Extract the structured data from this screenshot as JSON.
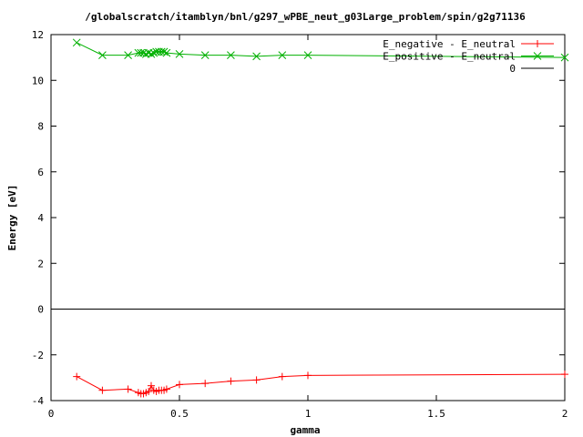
{
  "chart_data": {
    "type": "line",
    "title": "/globalscratch/itamblyn/bnl/g297_wPBE_neut_g03Large_problem/spin/g2g71136",
    "xlabel": "gamma",
    "ylabel": "Energy [eV]",
    "xlim": [
      0,
      2
    ],
    "ylim": [
      -4,
      12
    ],
    "x_ticks": [
      "0",
      "0.5",
      "1",
      "1.5",
      "2"
    ],
    "y_ticks": [
      "-4",
      "-2",
      "0",
      "2",
      "4",
      "6",
      "8",
      "10",
      "12"
    ],
    "grid": false,
    "legend_position": "top-right",
    "series": [
      {
        "name": "E_negative - E_neutral",
        "color": "#ff0000",
        "marker": "plus",
        "x": [
          0.1,
          0.2,
          0.3,
          0.34,
          0.35,
          0.36,
          0.37,
          0.38,
          0.39,
          0.4,
          0.41,
          0.42,
          0.43,
          0.44,
          0.45,
          0.5,
          0.6,
          0.7,
          0.8,
          0.9,
          1.0,
          2.0
        ],
        "y": [
          -2.95,
          -3.55,
          -3.5,
          -3.65,
          -3.7,
          -3.7,
          -3.65,
          -3.6,
          -3.35,
          -3.55,
          -3.6,
          -3.55,
          -3.55,
          -3.55,
          -3.5,
          -3.3,
          -3.25,
          -3.15,
          -3.1,
          -2.95,
          -2.9,
          -2.85
        ]
      },
      {
        "name": "E_positive - E_neutral",
        "color": "#00b000",
        "marker": "x",
        "x": [
          0.1,
          0.2,
          0.3,
          0.34,
          0.35,
          0.36,
          0.37,
          0.38,
          0.39,
          0.4,
          0.41,
          0.42,
          0.43,
          0.44,
          0.45,
          0.5,
          0.6,
          0.7,
          0.8,
          0.9,
          1.0,
          2.0
        ],
        "y": [
          11.65,
          11.1,
          11.1,
          11.2,
          11.2,
          11.2,
          11.15,
          11.2,
          11.15,
          11.2,
          11.25,
          11.25,
          11.25,
          11.25,
          11.2,
          11.15,
          11.1,
          11.1,
          11.05,
          11.1,
          11.1,
          11.0
        ]
      },
      {
        "name": "0",
        "color": "#000000",
        "marker": "none",
        "x": [
          0,
          2
        ],
        "y": [
          0,
          0
        ]
      }
    ]
  }
}
